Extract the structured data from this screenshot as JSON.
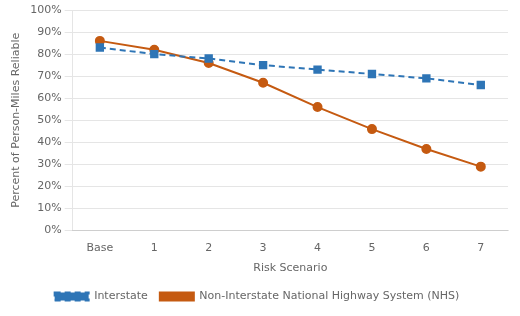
{
  "chart_data": {
    "type": "line",
    "x_label": "Risk Scenario",
    "y_label": "Percent of Person-Miles Reliable",
    "categories": [
      "Base",
      "1",
      "2",
      "3",
      "4",
      "5",
      "6",
      "7"
    ],
    "series": [
      {
        "name": "Interstate",
        "color": "#2E75B6",
        "marker": "square",
        "line_style": "dashed",
        "values": [
          0.83,
          0.8,
          0.78,
          0.75,
          0.73,
          0.71,
          0.69,
          0.66
        ]
      },
      {
        "name": "Non-Interstate National Highway System (NHS)",
        "color": "#C55A11",
        "marker": "circle",
        "line_style": "solid",
        "values": [
          0.86,
          0.82,
          0.76,
          0.67,
          0.56,
          0.46,
          0.37,
          0.29
        ]
      }
    ],
    "ylim": [
      0,
      1.0
    ],
    "yticks": [
      {
        "value": 0.0,
        "label": "0%"
      },
      {
        "value": 0.1,
        "label": "10%"
      },
      {
        "value": 0.2,
        "label": "20%"
      },
      {
        "value": 0.3,
        "label": "30%"
      },
      {
        "value": 0.4,
        "label": "40%"
      },
      {
        "value": 0.5,
        "label": "50%"
      },
      {
        "value": 0.6,
        "label": "60%"
      },
      {
        "value": 0.7,
        "label": "70%"
      },
      {
        "value": 0.8,
        "label": "80%"
      },
      {
        "value": 0.9,
        "label": "90%"
      },
      {
        "value": 1.0,
        "label": "100%"
      }
    ],
    "grid": true,
    "legend": "bottom"
  }
}
